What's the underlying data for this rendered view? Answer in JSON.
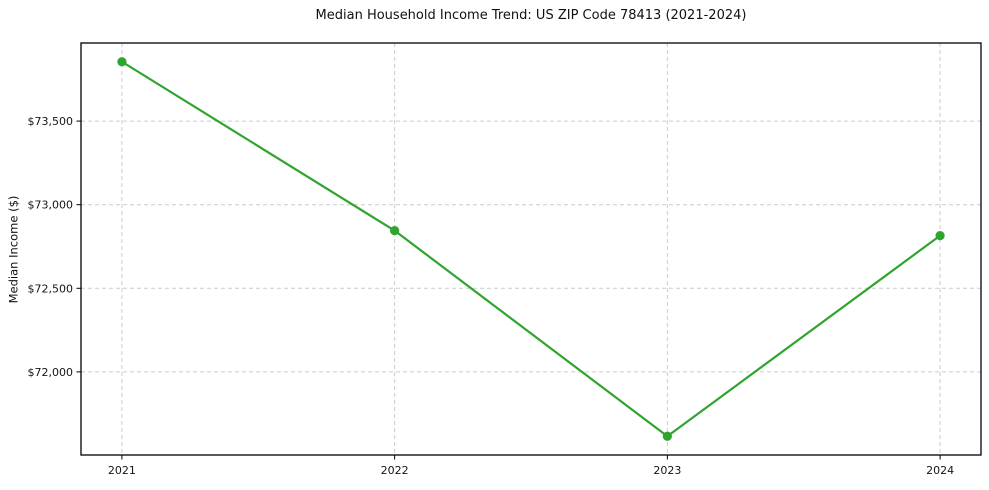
{
  "chart_data": {
    "type": "line",
    "title": "Median Household Income Trend: US ZIP Code 78413 (2021-2024)",
    "xlabel": "",
    "ylabel": "Median Income ($)",
    "x": [
      2021,
      2022,
      2023,
      2024
    ],
    "series": [
      {
        "name": "Median Household Income",
        "values": [
          73855,
          72845,
          71615,
          72815
        ]
      }
    ],
    "xlim": [
      2020.85,
      2024.15
    ],
    "ylim": [
      71503,
      73967
    ],
    "xticks": {
      "values": [
        2021,
        2022,
        2023,
        2024
      ],
      "labels": [
        "2021",
        "2022",
        "2023",
        "2024"
      ]
    },
    "yticks": {
      "values": [
        72000,
        72500,
        73000,
        73500
      ],
      "labels": [
        "$72,000",
        "$72,500",
        "$73,000",
        "$73,500"
      ]
    },
    "grid": "dashed, both axes",
    "grid_color": "#cccccc",
    "line_color": "#2fa42f",
    "marker": "circle",
    "marker_color": "#2fa42f",
    "spine_color": "#000000",
    "tick_label_color": "#151515",
    "legend": "none"
  }
}
